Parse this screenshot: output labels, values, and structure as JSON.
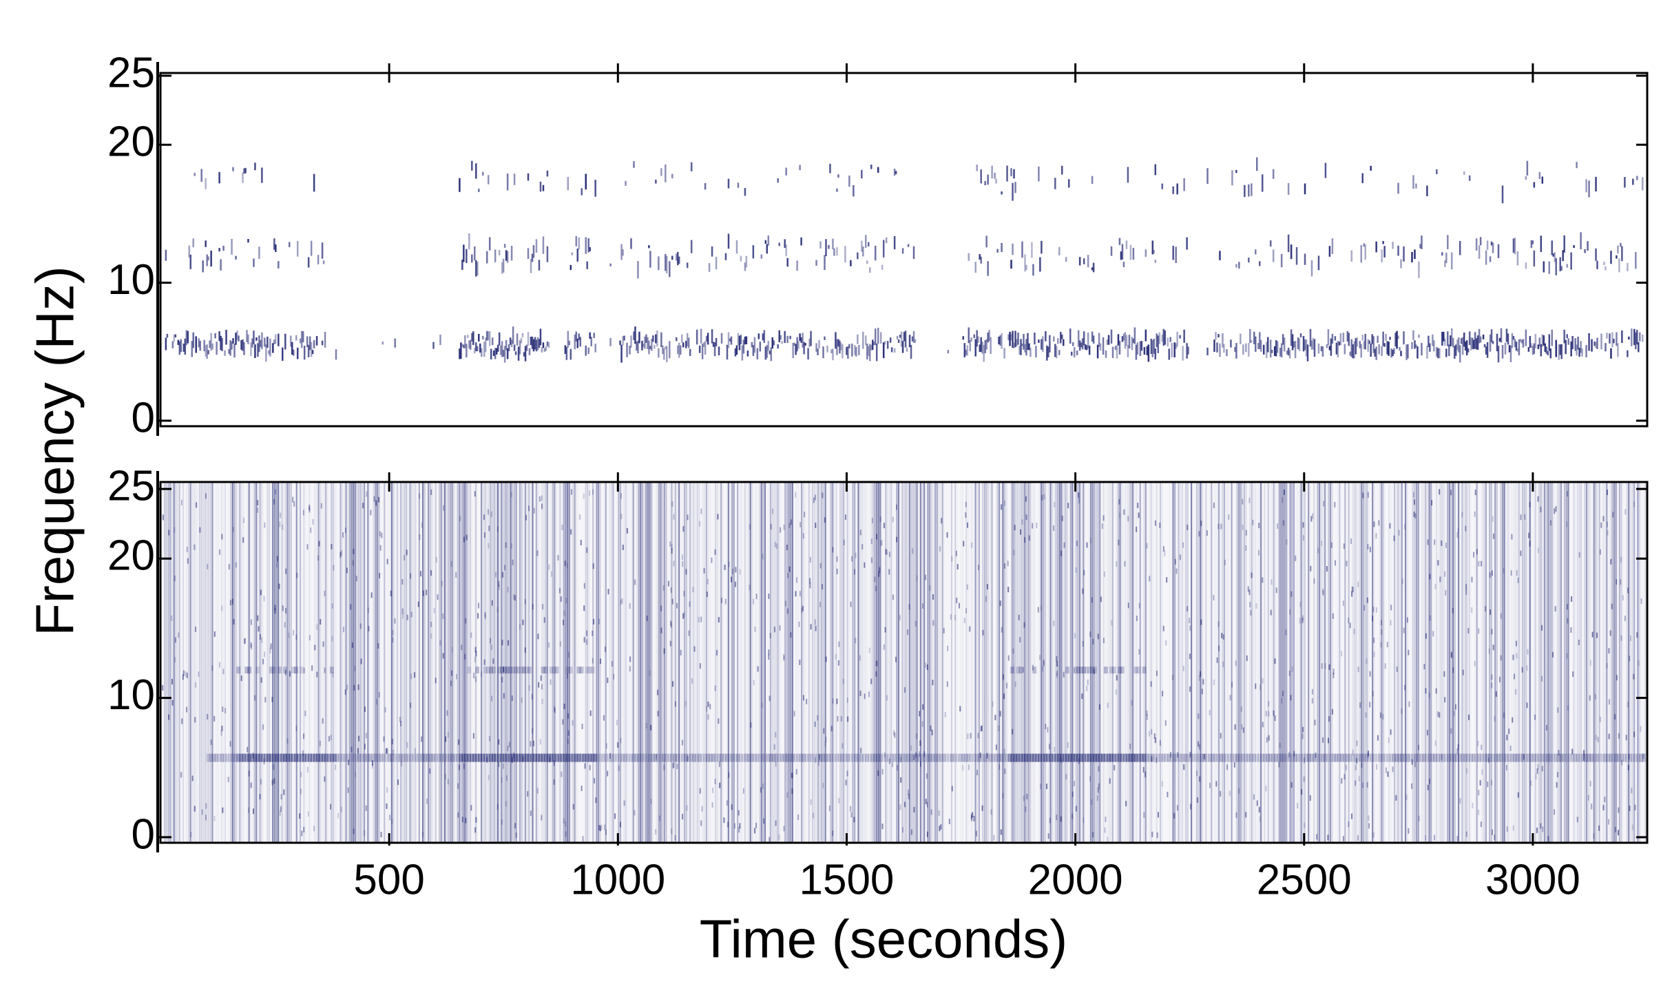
{
  "chart_data": [
    {
      "type": "spectrogram",
      "ylabel": "Frequency (Hz)",
      "color": "#1f2470",
      "xlim": [
        0,
        3250
      ],
      "xticks": [
        500,
        1000,
        1500,
        2000,
        2500,
        3000
      ],
      "ylim": [
        -0.4,
        25.2
      ],
      "yticks": [
        0,
        10,
        20,
        25
      ]
    },
    {
      "type": "spectrogram",
      "xlabel": "Time (seconds)",
      "color": "#1f2470",
      "xlim": [
        0,
        3250
      ],
      "xticks": [
        500,
        1000,
        1500,
        2000,
        2500,
        3000
      ],
      "ylim": [
        -0.4,
        25.5
      ],
      "yticks": [
        0,
        10,
        20,
        25
      ]
    }
  ]
}
